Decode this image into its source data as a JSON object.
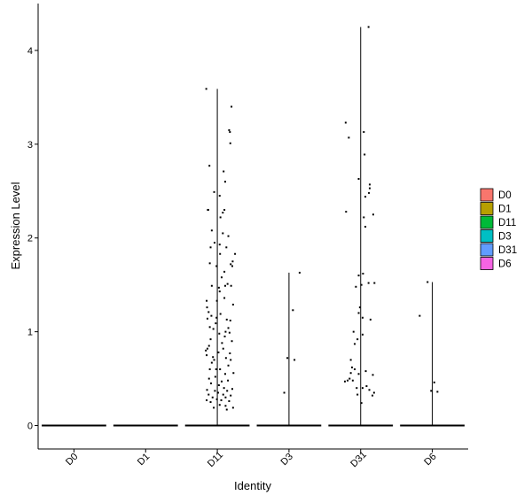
{
  "chart_data": {
    "type": "violin",
    "xlabel": "Identity",
    "ylabel": "Expression Level",
    "categories": [
      "D0",
      "D1",
      "D11",
      "D3",
      "D31",
      "D6"
    ],
    "ylim": [
      -0.25,
      4.5
    ],
    "yticks": [
      0,
      1,
      2,
      3,
      4
    ],
    "legend": {
      "position": "right",
      "entries": [
        {
          "name": "D0",
          "color": "#F8766D"
        },
        {
          "name": "D1",
          "color": "#B79F00"
        },
        {
          "name": "D11",
          "color": "#00BA38"
        },
        {
          "name": "D3",
          "color": "#00BFC4"
        },
        {
          "name": "D31",
          "color": "#619CFF"
        },
        {
          "name": "D6",
          "color": "#F564E3"
        }
      ]
    },
    "series": [
      {
        "category": "D0",
        "max": 0,
        "points": []
      },
      {
        "category": "D1",
        "max": 0,
        "points": []
      },
      {
        "category": "D11",
        "max": 3.59,
        "points": [
          [
            -0.28,
            3.59
          ],
          [
            0.36,
            3.4
          ],
          [
            0.3,
            3.15
          ],
          [
            0.32,
            3.13
          ],
          [
            0.33,
            3.01
          ],
          [
            -0.2,
            2.77
          ],
          [
            0.16,
            2.71
          ],
          [
            0.2,
            2.6
          ],
          [
            -0.08,
            2.49
          ],
          [
            0.06,
            2.45
          ],
          [
            -0.24,
            2.3
          ],
          [
            -0.23,
            2.3
          ],
          [
            0.18,
            2.3
          ],
          [
            0.14,
            2.27
          ],
          [
            0.08,
            2.22
          ],
          [
            -0.14,
            2.08
          ],
          [
            0.14,
            2.05
          ],
          [
            0.28,
            2.02
          ],
          [
            -0.07,
            1.95
          ],
          [
            0.06,
            1.93
          ],
          [
            -0.17,
            1.9
          ],
          [
            0.23,
            1.9
          ],
          [
            0.07,
            1.83
          ],
          [
            0.45,
            1.83
          ],
          [
            -0.19,
            1.73
          ],
          [
            -0.02,
            1.7
          ],
          [
            0.34,
            1.72
          ],
          [
            0.39,
            1.75
          ],
          [
            0.38,
            1.7
          ],
          [
            0.18,
            1.64
          ],
          [
            0.11,
            1.58
          ],
          [
            0.2,
            1.49
          ],
          [
            0.04,
            1.47
          ],
          [
            -0.14,
            1.49
          ],
          [
            0.35,
            1.49
          ],
          [
            0.26,
            1.51
          ],
          [
            0.06,
            1.43
          ],
          [
            -0.01,
            1.33
          ],
          [
            -0.27,
            1.33
          ],
          [
            0.18,
            1.36
          ],
          [
            0.4,
            1.29
          ],
          [
            -0.26,
            1.26
          ],
          [
            -0.22,
            1.21
          ],
          [
            0.08,
            1.19
          ],
          [
            -0.15,
            1.17
          ],
          [
            -0.02,
            1.15
          ],
          [
            0.33,
            1.12
          ],
          [
            -0.25,
            1.14
          ],
          [
            0.24,
            1.13
          ],
          [
            -0.04,
            1.09
          ],
          [
            -0.19,
            1.05
          ],
          [
            -0.1,
            1.03
          ],
          [
            0.28,
            1.04
          ],
          [
            0.21,
            1
          ],
          [
            0.05,
            0.98
          ],
          [
            0.31,
            0.99
          ],
          [
            0.19,
            0.95
          ],
          [
            -0.17,
            0.92
          ],
          [
            0.37,
            0.9
          ],
          [
            0.12,
            0.88
          ],
          [
            -0.21,
            0.85
          ],
          [
            -0.25,
            0.82
          ],
          [
            -0.29,
            0.8
          ],
          [
            0.15,
            0.82
          ],
          [
            -0.27,
            0.75
          ],
          [
            0.32,
            0.77
          ],
          [
            0.03,
            0.78
          ],
          [
            -0.11,
            0.73
          ],
          [
            -0.08,
            0.7
          ],
          [
            0.22,
            0.72
          ],
          [
            0.34,
            0.7
          ],
          [
            -0.14,
            0.67
          ],
          [
            0.28,
            0.64
          ],
          [
            -0.19,
            0.6
          ],
          [
            0.07,
            0.6
          ],
          [
            -0.03,
            0.6
          ],
          [
            0.41,
            0.56
          ],
          [
            0.2,
            0.55
          ],
          [
            -0.05,
            0.52
          ],
          [
            -0.21,
            0.5
          ],
          [
            0.27,
            0.48
          ],
          [
            0.11,
            0.47
          ],
          [
            -0.16,
            0.45
          ],
          [
            0.04,
            0.43
          ],
          [
            0.17,
            0.4
          ],
          [
            0.38,
            0.39
          ],
          [
            -0.26,
            0.38
          ],
          [
            -0.06,
            0.37
          ],
          [
            0.25,
            0.37
          ],
          [
            0.02,
            0.35
          ],
          [
            -0.22,
            0.33
          ],
          [
            0.15,
            0.33
          ],
          [
            0.34,
            0.32
          ],
          [
            -0.12,
            0.3
          ],
          [
            0.21,
            0.3
          ],
          [
            -0.01,
            0.28
          ],
          [
            -0.27,
            0.27
          ],
          [
            0.1,
            0.27
          ],
          [
            0.3,
            0.26
          ],
          [
            -0.17,
            0.25
          ],
          [
            0.06,
            0.22
          ],
          [
            0.21,
            0.21
          ],
          [
            -0.09,
            0.19
          ],
          [
            0.4,
            0.19
          ],
          [
            0.24,
            0.17
          ]
        ]
      },
      {
        "category": "D3",
        "max": 1.63,
        "points": [
          [
            0.27,
            1.63
          ],
          [
            0.1,
            1.23
          ],
          [
            -0.04,
            0.72
          ],
          [
            0.14,
            0.7
          ],
          [
            -0.12,
            0.35
          ]
        ]
      },
      {
        "category": "D31",
        "max": 4.25,
        "points": [
          [
            0.2,
            4.25
          ],
          [
            -0.38,
            3.23
          ],
          [
            -0.3,
            3.07
          ],
          [
            0.08,
            3.13
          ],
          [
            0.1,
            2.89
          ],
          [
            0.23,
            2.57
          ],
          [
            0.23,
            2.53
          ],
          [
            0.21,
            2.48
          ],
          [
            -0.05,
            2.63
          ],
          [
            0.12,
            2.44
          ],
          [
            -0.37,
            2.28
          ],
          [
            0.32,
            2.25
          ],
          [
            0.08,
            2.22
          ],
          [
            0.12,
            2.12
          ],
          [
            0.06,
            1.62
          ],
          [
            -0.05,
            1.6
          ],
          [
            0.2,
            1.52
          ],
          [
            0.35,
            1.52
          ],
          [
            -0.12,
            1.48
          ],
          [
            0.02,
            1.5
          ],
          [
            -0.02,
            1.26
          ],
          [
            -0.05,
            1.2
          ],
          [
            0.05,
            1.15
          ],
          [
            0.25,
            1.13
          ],
          [
            -0.18,
            1
          ],
          [
            0.05,
            0.97
          ],
          [
            -0.08,
            0.92
          ],
          [
            -0.15,
            0.87
          ],
          [
            -0.25,
            0.7
          ],
          [
            -0.22,
            0.62
          ],
          [
            -0.15,
            0.6
          ],
          [
            0.13,
            0.58
          ],
          [
            -0.25,
            0.56
          ],
          [
            -0.05,
            0.55
          ],
          [
            0.31,
            0.54
          ],
          [
            -0.28,
            0.5
          ],
          [
            -0.2,
            0.48
          ],
          [
            -0.4,
            0.47
          ],
          [
            -0.33,
            0.48
          ],
          [
            0.15,
            0.42
          ],
          [
            0.22,
            0.38
          ],
          [
            -0.1,
            0.4
          ],
          [
            0.05,
            0.4
          ],
          [
            0.34,
            0.35
          ],
          [
            -0.08,
            0.33
          ],
          [
            0.3,
            0.32
          ],
          [
            0.02,
            0.24
          ]
        ]
      },
      {
        "category": "D6",
        "max": 1.53,
        "points": [
          [
            -0.12,
            1.53
          ],
          [
            -0.32,
            1.17
          ],
          [
            0.05,
            0.46
          ],
          [
            0.13,
            0.36
          ],
          [
            -0.03,
            0.37
          ]
        ]
      }
    ]
  }
}
